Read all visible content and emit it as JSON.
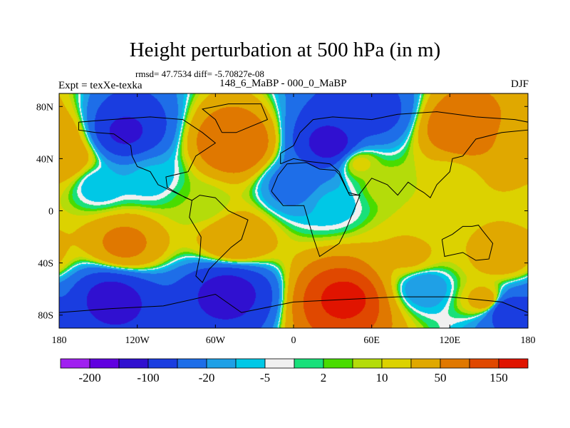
{
  "title": "Height perturbation at 500 hPa (in m)",
  "stats_line": "rmsd= 47.7534 diff= -5.70827e-08",
  "expt_label": "Expt = texXe-texka",
  "period_label": "148_6_MaBP - 000_0_MaBP",
  "season_label": "DJF",
  "map": {
    "projection": "cylindrical equidistant",
    "lon_range": [
      -180,
      180
    ],
    "lat_range": [
      -90,
      90
    ],
    "lon_ticks": [
      {
        "value": -180,
        "label": "180"
      },
      {
        "value": -120,
        "label": "120W"
      },
      {
        "value": -60,
        "label": "60W"
      },
      {
        "value": 0,
        "label": "0"
      },
      {
        "value": 60,
        "label": "60E"
      },
      {
        "value": 120,
        "label": "120E"
      },
      {
        "value": 180,
        "label": "180"
      }
    ],
    "lat_ticks": [
      {
        "value": 80,
        "label": "80N"
      },
      {
        "value": 40,
        "label": "40N"
      },
      {
        "value": 0,
        "label": "0"
      },
      {
        "value": -40,
        "label": "40S"
      },
      {
        "value": -80,
        "label": "80S"
      }
    ],
    "field_features": [
      {
        "lon": -130,
        "lat": 60,
        "value": -110
      },
      {
        "lon": -150,
        "lat": 20,
        "value": -10
      },
      {
        "lon": -110,
        "lat": 25,
        "value": -8
      },
      {
        "lon": 30,
        "lat": 50,
        "value": -130
      },
      {
        "lon": 60,
        "lat": 75,
        "value": -70
      },
      {
        "lon": 0,
        "lat": 20,
        "value": -30
      },
      {
        "lon": 130,
        "lat": 62,
        "value": 100
      },
      {
        "lon": 175,
        "lat": 55,
        "value": 40
      },
      {
        "lon": -175,
        "lat": 40,
        "value": 40
      },
      {
        "lon": -45,
        "lat": 50,
        "value": 100
      },
      {
        "lon": 50,
        "lat": 37,
        "value": 15
      },
      {
        "lon": 120,
        "lat": 25,
        "value": 12
      },
      {
        "lon": 70,
        "lat": 20,
        "value": 8
      },
      {
        "lon": -70,
        "lat": 5,
        "value": 5
      },
      {
        "lon": 30,
        "lat": 5,
        "value": -8
      },
      {
        "lon": 110,
        "lat": -10,
        "value": 18
      },
      {
        "lon": -130,
        "lat": -25,
        "value": 60
      },
      {
        "lon": -45,
        "lat": -22,
        "value": 50
      },
      {
        "lon": 90,
        "lat": -35,
        "value": 25
      },
      {
        "lon": 160,
        "lat": -35,
        "value": 35
      },
      {
        "lon": 40,
        "lat": -67,
        "value": 165
      },
      {
        "lon": 150,
        "lat": -70,
        "value": 50
      },
      {
        "lon": -140,
        "lat": -67,
        "value": -120
      },
      {
        "lon": -50,
        "lat": -62,
        "value": -120
      },
      {
        "lon": 100,
        "lat": -58,
        "value": -20
      },
      {
        "lon": 160,
        "lat": -75,
        "value": -100
      }
    ]
  },
  "colorbar": {
    "colors": [
      "#a020f0",
      "#6000e0",
      "#3010d0",
      "#1a3de0",
      "#1e6ee8",
      "#1fa0e6",
      "#00c8e6",
      "#f0f0f0",
      "#19e07a",
      "#49dc00",
      "#b4dc0a",
      "#dcd200",
      "#e0a800",
      "#e07800",
      "#e04800",
      "#e01400"
    ],
    "labels": [
      {
        "boundary": 1,
        "text": "-200"
      },
      {
        "boundary": 3,
        "text": "-100"
      },
      {
        "boundary": 5,
        "text": "-20"
      },
      {
        "boundary": 7,
        "text": "-5"
      },
      {
        "boundary": 9,
        "text": "2"
      },
      {
        "boundary": 11,
        "text": "10"
      },
      {
        "boundary": 13,
        "text": "50"
      },
      {
        "boundary": 15,
        "text": "150"
      }
    ]
  }
}
